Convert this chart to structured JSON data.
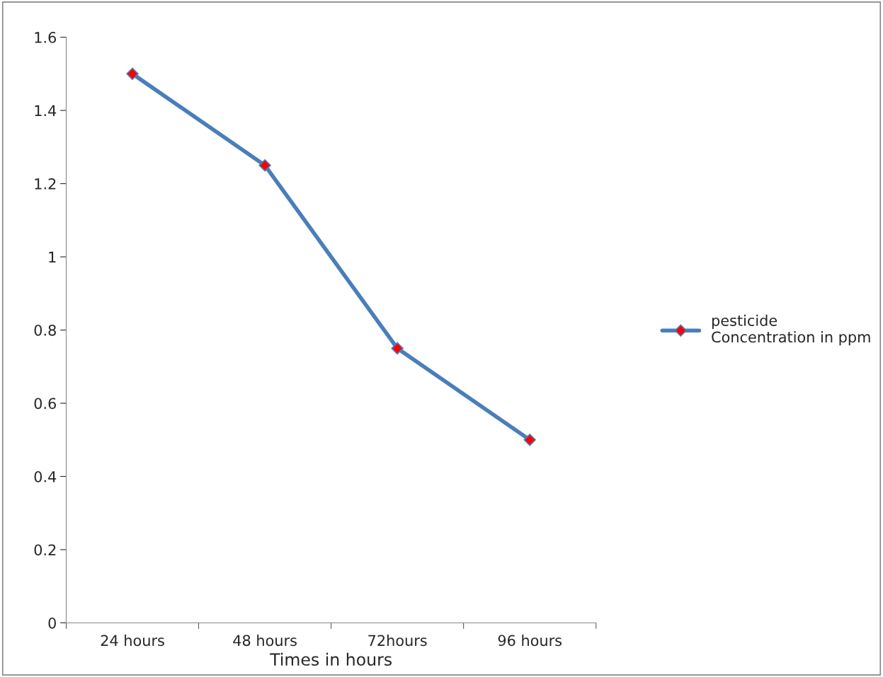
{
  "chart_data": {
    "type": "line",
    "xlabel": "Times in hours",
    "categories": [
      "24 hours",
      "48 hours",
      "72hours",
      "96 hours"
    ],
    "series": [
      {
        "name": "pesticide\nConcentration in ppm",
        "color": "#4a7ebb",
        "values": [
          1.5,
          1.25,
          0.75,
          0.5
        ]
      }
    ],
    "marker": "diamond",
    "ylim": [
      0,
      1.6
    ],
    "yticks": [
      0,
      0.2,
      0.4,
      0.6,
      0.8,
      1,
      1.2,
      1.4,
      1.6
    ],
    "grid": false,
    "legend": "right"
  }
}
